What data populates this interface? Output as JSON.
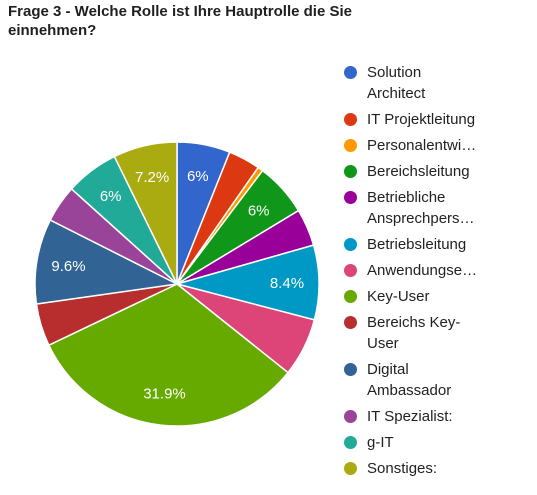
{
  "chart_data": {
    "type": "pie",
    "title": "Frage 3 - Welche Rolle ist Ihre Hauptrolle die Sie einnehmen?",
    "legend_position": "right",
    "slices": [
      {
        "legend": [
          "Solution",
          "Architect"
        ],
        "value": 6.0,
        "label": "6%",
        "color": "#3366cc"
      },
      {
        "legend": [
          "IT Projektleitung"
        ],
        "value": 3.6,
        "label": "",
        "color": "#dc3912"
      },
      {
        "legend": [
          "Personalentwi…"
        ],
        "value": 0.6,
        "label": "",
        "color": "#ff9900"
      },
      {
        "legend": [
          "Bereichsleitung"
        ],
        "value": 6.0,
        "label": "6%",
        "color": "#109618"
      },
      {
        "legend": [
          "Betriebliche",
          "Ansprechpers…"
        ],
        "value": 4.2,
        "label": "",
        "color": "#990099"
      },
      {
        "legend": [
          "Betriebsleitung"
        ],
        "value": 8.4,
        "label": "8.4%",
        "color": "#0099c6"
      },
      {
        "legend": [
          "Anwendungse…"
        ],
        "value": 6.6,
        "label": "",
        "color": "#dd4477"
      },
      {
        "legend": [
          "Key-User"
        ],
        "value": 31.9,
        "label": "31.9%",
        "color": "#66aa00"
      },
      {
        "legend": [
          "Bereichs Key-",
          "User"
        ],
        "value": 4.8,
        "label": "",
        "color": "#b82e2e"
      },
      {
        "legend": [
          "Digital",
          "Ambassador"
        ],
        "value": 9.6,
        "label": "9.6%",
        "color": "#316395"
      },
      {
        "legend": [
          "IT Spezialist:"
        ],
        "value": 4.2,
        "label": "",
        "color": "#994499"
      },
      {
        "legend": [
          "g-IT"
        ],
        "value": 6.0,
        "label": "6%",
        "color": "#22aa99"
      },
      {
        "legend": [
          "Sonstiges:"
        ],
        "value": 7.2,
        "label": "7.2%",
        "color": "#aaaa11"
      }
    ]
  }
}
